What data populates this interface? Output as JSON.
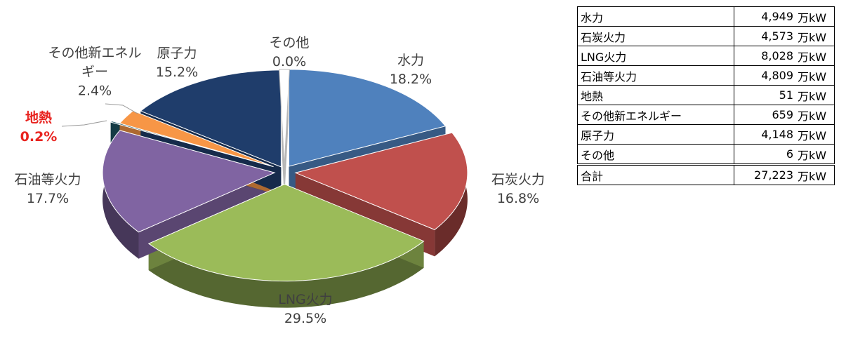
{
  "chart_data": {
    "type": "pie",
    "categories": [
      "水力",
      "石炭火力",
      "LNG火力",
      "石油等火力",
      "地熱",
      "その他新エネルギー",
      "原子力",
      "その他"
    ],
    "values": [
      18.2,
      16.8,
      29.5,
      17.7,
      0.2,
      2.4,
      15.2,
      0
    ],
    "value_labels": [
      "18.2%",
      "16.8%",
      "29.5%",
      "17.7%",
      "0.2%",
      "2.4%",
      "15.2%",
      "0.0%"
    ],
    "colors": [
      "#4f81bd",
      "#c0504d",
      "#9bbb59",
      "#8064a2",
      "#1d5563",
      "#f79646",
      "#1f3d6b",
      "#ffffff"
    ],
    "label_colors": [
      "#404040",
      "#404040",
      "#404040",
      "#404040",
      "#e8231f",
      "#404040",
      "#404040",
      "#404040"
    ]
  },
  "table": {
    "rows": [
      [
        "水力",
        "4,949",
        "万kW"
      ],
      [
        "石炭火力",
        "4,573",
        "万kW"
      ],
      [
        "LNG火力",
        "8,028",
        "万kW"
      ],
      [
        "石油等火力",
        "4,809",
        "万kW"
      ],
      [
        "地熱",
        "51",
        "万kW"
      ],
      [
        "その他新エネルギー",
        "659",
        "万kW"
      ],
      [
        "原子力",
        "4,148",
        "万kW"
      ],
      [
        "その他",
        "6",
        "万kW"
      ]
    ],
    "total": [
      "合計",
      "27,223",
      "万kW"
    ]
  }
}
